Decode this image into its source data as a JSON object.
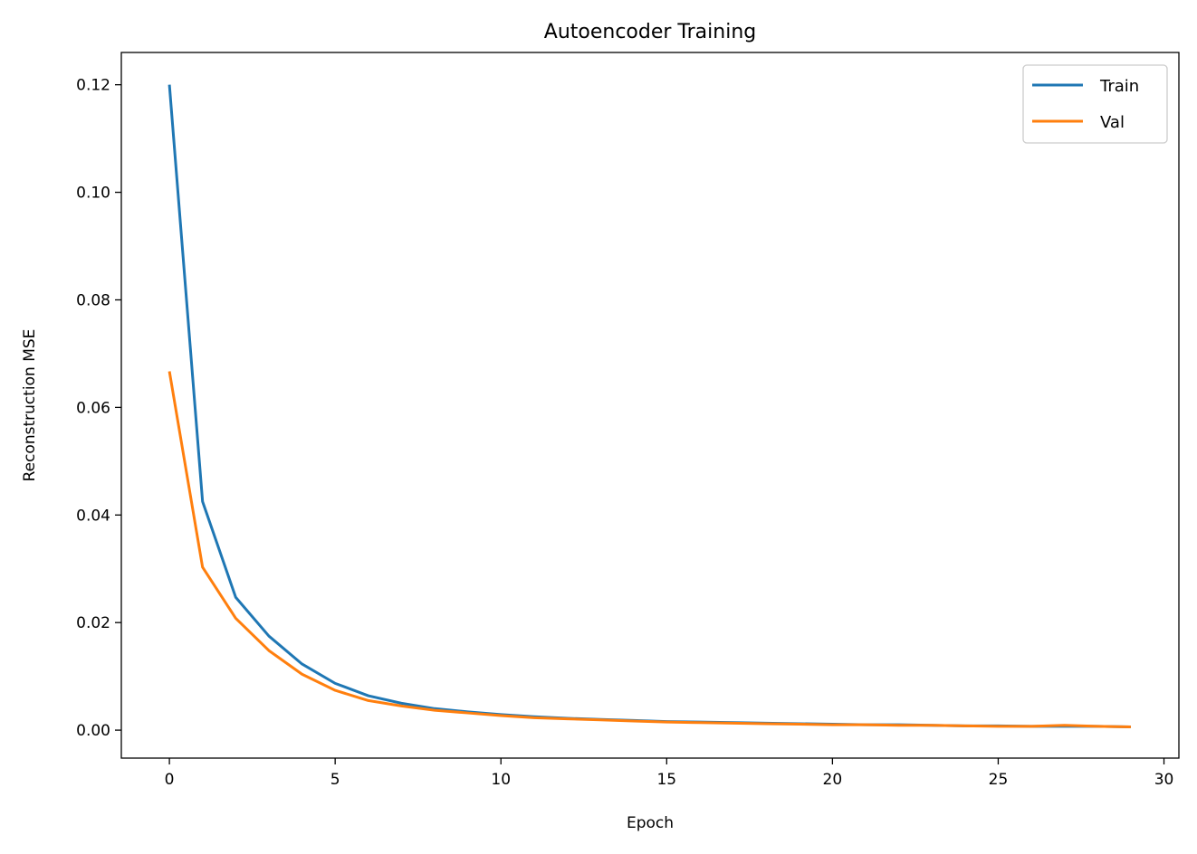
{
  "chart_data": {
    "type": "line",
    "title": "Autoencoder Training",
    "xlabel": "Epoch",
    "ylabel": "Reconstruction MSE",
    "xlim": [
      -1.45,
      30.45
    ],
    "ylim": [
      -0.0052,
      0.126
    ],
    "xticks": [
      0,
      5,
      10,
      15,
      20,
      25,
      30
    ],
    "xtick_labels": [
      "0",
      "5",
      "10",
      "15",
      "20",
      "25",
      "30"
    ],
    "yticks": [
      0,
      0.02,
      0.04,
      0.06,
      0.08,
      0.1,
      0.12
    ],
    "ytick_labels": [
      "0.00",
      "0.02",
      "0.04",
      "0.06",
      "0.08",
      "0.10",
      "0.12"
    ],
    "grid": false,
    "legend_placement": "upper-right",
    "x": [
      0,
      1,
      2,
      3,
      4,
      5,
      6,
      7,
      8,
      9,
      10,
      11,
      12,
      13,
      14,
      15,
      16,
      17,
      18,
      19,
      20,
      21,
      22,
      23,
      24,
      25,
      26,
      27,
      28,
      29
    ],
    "series": [
      {
        "name": "Train",
        "color": "#1f77b4",
        "values": [
          0.12,
          0.0425,
          0.0247,
          0.0175,
          0.0123,
          0.0087,
          0.0064,
          0.005,
          0.004,
          0.0034,
          0.0029,
          0.0025,
          0.0022,
          0.002,
          0.0018,
          0.0016,
          0.0015,
          0.0014,
          0.0013,
          0.0012,
          0.0011,
          0.001,
          0.001,
          0.0009,
          0.0008,
          0.0008,
          0.0007,
          0.0007,
          0.0007,
          0.0006
        ]
      },
      {
        "name": "Val",
        "color": "#ff7f0e",
        "values": [
          0.0667,
          0.0303,
          0.0208,
          0.0148,
          0.0104,
          0.0074,
          0.0055,
          0.0045,
          0.0037,
          0.0032,
          0.0027,
          0.0023,
          0.0021,
          0.0019,
          0.0017,
          0.0015,
          0.0014,
          0.0013,
          0.0012,
          0.0011,
          0.001,
          0.001,
          0.0009,
          0.0009,
          0.0008,
          0.0007,
          0.0007,
          0.0009,
          0.0007,
          0.0006
        ]
      }
    ]
  }
}
